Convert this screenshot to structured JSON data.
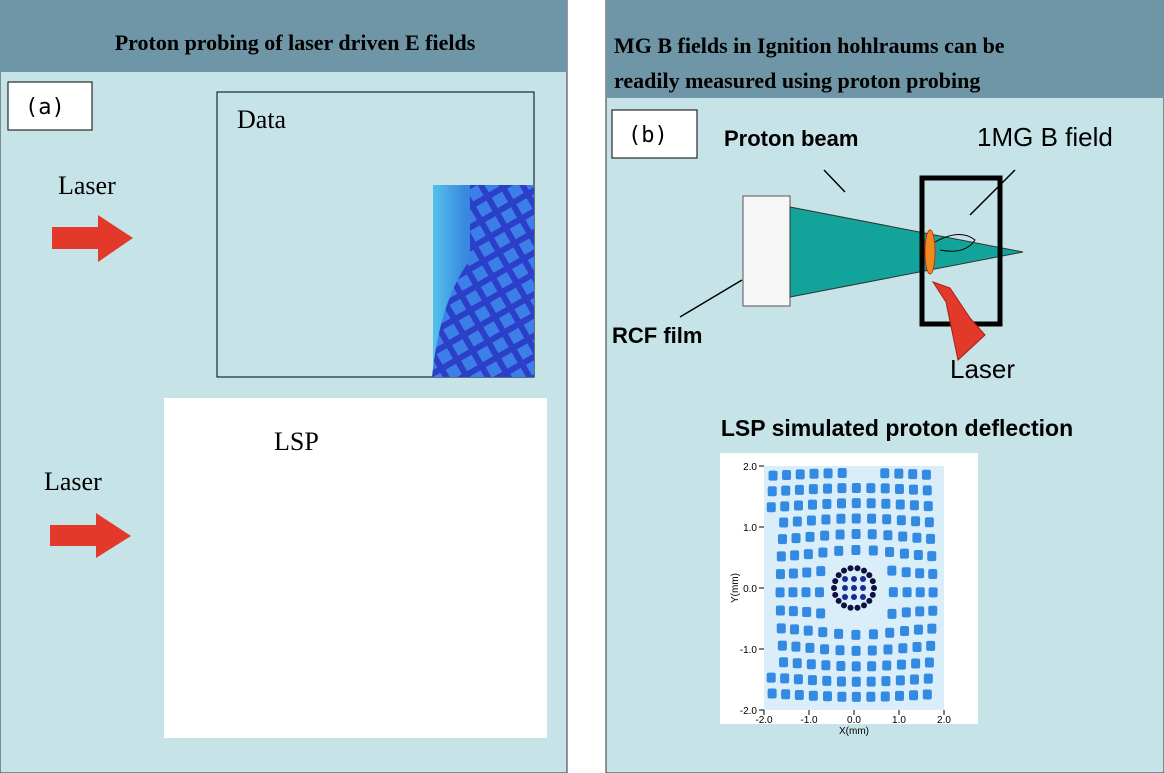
{
  "panel_a": {
    "title": "Proton probing of laser driven E fields",
    "label": "(a)",
    "data_label": "Data",
    "laser_top": "Laser",
    "laser_bottom": "Laser",
    "lsp_label": "LSP"
  },
  "panel_b": {
    "title_line1": "MG B  fields in Ignition hohlraums can be",
    "title_line2": "readily measured using proton probing",
    "label": "(b)",
    "proton_beam": "Proton beam",
    "b_field": "1MG B field",
    "rcf_film": "RCF film",
    "laser": "Laser",
    "sim": {
      "title": "LSP simulated proton deflection",
      "y_tick_labels": [
        "2.0",
        "1.0",
        "0.0",
        "-1.0",
        "-2.0"
      ],
      "x_tick_labels": [
        "-2.0",
        "-1.0",
        "0.0",
        "1.0",
        "2.0"
      ],
      "y_axis_label": "Y(mm)",
      "x_axis_label": "X(mm)"
    }
  }
}
